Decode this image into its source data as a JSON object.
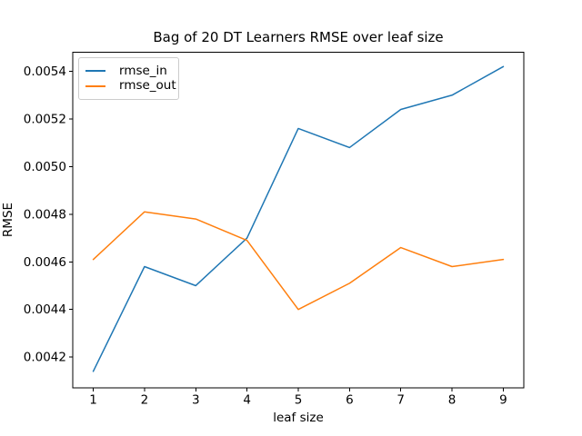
{
  "chart_data": {
    "type": "line",
    "title": "Bag of 20 DT Learners RMSE over leaf size",
    "xlabel": "leaf size",
    "ylabel": "RMSE",
    "x": [
      1,
      2,
      3,
      4,
      5,
      6,
      7,
      8,
      9
    ],
    "series": [
      {
        "name": "rmse_in",
        "color": "#1f77b4",
        "values": [
          0.00414,
          0.00458,
          0.0045,
          0.0047,
          0.00516,
          0.00508,
          0.00524,
          0.0053,
          0.00542
        ]
      },
      {
        "name": "rmse_out",
        "color": "#ff7f0e",
        "values": [
          0.00461,
          0.00481,
          0.00478,
          0.00469,
          0.0044,
          0.00451,
          0.00466,
          0.00458,
          0.00461
        ]
      }
    ],
    "xlim": [
      0.6,
      9.4
    ],
    "ylim": [
      0.00407,
      0.00548
    ],
    "xticks": [
      1,
      2,
      3,
      4,
      5,
      6,
      7,
      8,
      9
    ],
    "xtick_labels": [
      "1",
      "2",
      "3",
      "4",
      "5",
      "6",
      "7",
      "8",
      "9"
    ],
    "yticks": [
      0.0042,
      0.0044,
      0.0046,
      0.0048,
      0.005,
      0.0052,
      0.0054
    ],
    "ytick_labels": [
      "0.0042",
      "0.0044",
      "0.0046",
      "0.0048",
      "0.0050",
      "0.0052",
      "0.0054"
    ],
    "grid": false,
    "legend": {
      "position": "upper left",
      "entries": [
        "rmse_in",
        "rmse_out"
      ]
    },
    "axis_color": "#000000",
    "background_color": "#ffffff"
  }
}
